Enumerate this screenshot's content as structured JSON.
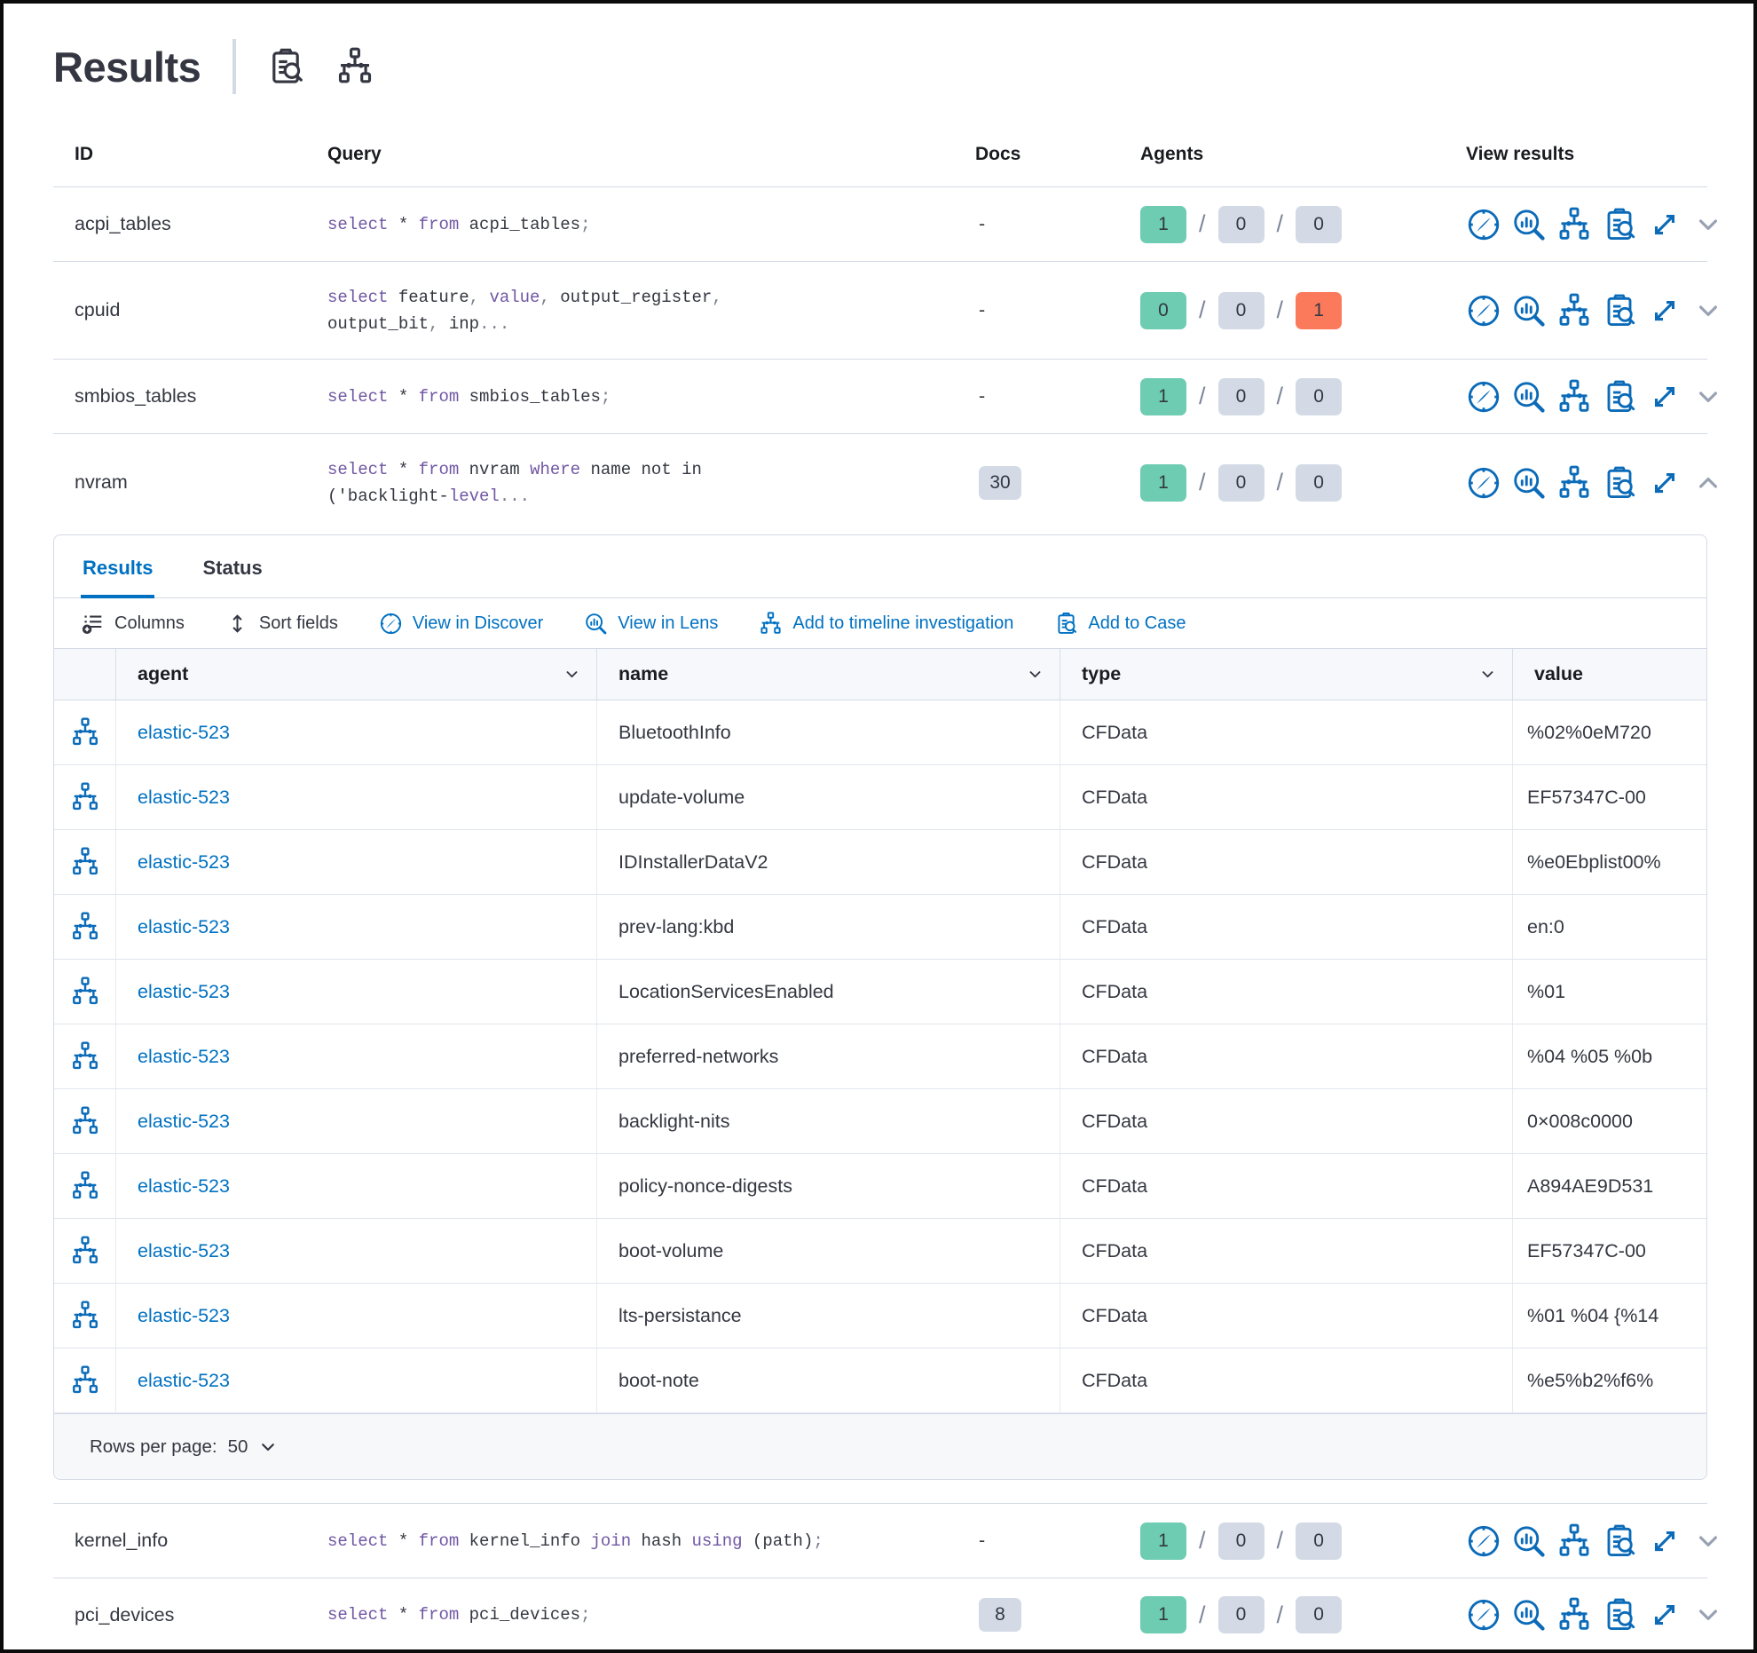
{
  "page": {
    "title": "Results"
  },
  "colors": {
    "accent_blue": "#0071c2",
    "success_badge": "#6dccb1",
    "default_badge": "#d3dae6",
    "danger_badge": "#fb7a5c",
    "sql_keyword": "#7057a3"
  },
  "header_icons": [
    {
      "icon": "inspect",
      "name": "inspect-query-icon"
    },
    {
      "icon": "timeline",
      "name": "timeline-icon"
    }
  ],
  "table": {
    "columns": [
      "ID",
      "Query",
      "Docs",
      "Agents",
      "View results"
    ],
    "row_action_icons": [
      {
        "icon": "discover",
        "name": "view-in-discover-button"
      },
      {
        "icon": "lens",
        "name": "view-in-lens-button"
      },
      {
        "icon": "timeline",
        "name": "add-to-timeline-button"
      },
      {
        "icon": "case",
        "name": "add-to-case-button"
      },
      {
        "icon": "expand",
        "name": "expand-results-button"
      }
    ],
    "rows": [
      {
        "id": "acpi_tables",
        "docs": "-",
        "docs_is_badge": false,
        "expanded": false,
        "agents": {
          "ok": "1",
          "pending": "0",
          "failed": "0"
        },
        "query_lines": [
          [
            {
              "t": "select",
              "c": "kw"
            },
            {
              "t": " * ",
              "c": "tx"
            },
            {
              "t": "from",
              "c": "kw"
            },
            {
              "t": " acpi_tables",
              "c": "tx"
            },
            {
              "t": ";",
              "c": "pu"
            }
          ]
        ]
      },
      {
        "id": "cpuid",
        "docs": "-",
        "docs_is_badge": false,
        "expanded": false,
        "agents": {
          "ok": "0",
          "pending": "0",
          "failed": "1"
        },
        "query_lines": [
          [
            {
              "t": "select",
              "c": "kw"
            },
            {
              "t": " feature",
              "c": "tx"
            },
            {
              "t": ", ",
              "c": "pu"
            },
            {
              "t": "value",
              "c": "kw"
            },
            {
              "t": ", ",
              "c": "pu"
            },
            {
              "t": "output_register",
              "c": "tx"
            },
            {
              "t": ",",
              "c": "pu"
            }
          ],
          [
            {
              "t": "output_bit",
              "c": "tx"
            },
            {
              "t": ", ",
              "c": "pu"
            },
            {
              "t": "inp",
              "c": "tx"
            },
            {
              "t": "...",
              "c": "pu"
            }
          ]
        ]
      },
      {
        "id": "smbios_tables",
        "docs": "-",
        "docs_is_badge": false,
        "expanded": false,
        "agents": {
          "ok": "1",
          "pending": "0",
          "failed": "0"
        },
        "query_lines": [
          [
            {
              "t": "select",
              "c": "kw"
            },
            {
              "t": " * ",
              "c": "tx"
            },
            {
              "t": "from",
              "c": "kw"
            },
            {
              "t": " smbios_tables",
              "c": "tx"
            },
            {
              "t": ";",
              "c": "pu"
            }
          ]
        ]
      },
      {
        "id": "nvram",
        "docs": "30",
        "docs_is_badge": true,
        "expanded": true,
        "agents": {
          "ok": "1",
          "pending": "0",
          "failed": "0"
        },
        "query_lines": [
          [
            {
              "t": "select",
              "c": "kw"
            },
            {
              "t": " * ",
              "c": "tx"
            },
            {
              "t": "from",
              "c": "kw"
            },
            {
              "t": " nvram ",
              "c": "tx"
            },
            {
              "t": "where",
              "c": "kw"
            },
            {
              "t": " name not in",
              "c": "tx"
            }
          ],
          [
            {
              "t": "('backlight-",
              "c": "tx"
            },
            {
              "t": "level",
              "c": "kw"
            },
            {
              "t": "...",
              "c": "pu"
            }
          ]
        ]
      },
      {
        "id": "kernel_info",
        "docs": "-",
        "docs_is_badge": false,
        "expanded": false,
        "agents": {
          "ok": "1",
          "pending": "0",
          "failed": "0"
        },
        "query_lines": [
          [
            {
              "t": "select",
              "c": "kw"
            },
            {
              "t": " * ",
              "c": "tx"
            },
            {
              "t": "from",
              "c": "kw"
            },
            {
              "t": " kernel_info ",
              "c": "tx"
            },
            {
              "t": "join",
              "c": "kw"
            },
            {
              "t": " hash ",
              "c": "tx"
            },
            {
              "t": "using",
              "c": "kw"
            },
            {
              "t": " (path)",
              "c": "tx"
            },
            {
              "t": ";",
              "c": "pu"
            }
          ]
        ]
      },
      {
        "id": "pci_devices",
        "docs": "8",
        "docs_is_badge": true,
        "expanded": false,
        "agents": {
          "ok": "1",
          "pending": "0",
          "failed": "0"
        },
        "query_lines": [
          [
            {
              "t": "select",
              "c": "kw"
            },
            {
              "t": " * ",
              "c": "tx"
            },
            {
              "t": "from",
              "c": "kw"
            },
            {
              "t": " pci_devices",
              "c": "tx"
            },
            {
              "t": ";",
              "c": "pu"
            }
          ]
        ]
      }
    ]
  },
  "panel": {
    "attached_to_row": "nvram",
    "tabs": [
      {
        "label": "Results",
        "active": true
      },
      {
        "label": "Status",
        "active": false
      }
    ],
    "toolbar": [
      {
        "label": "Columns",
        "icon": "columns",
        "variant": "dark",
        "name": "columns-button"
      },
      {
        "label": "Sort fields",
        "icon": "sort",
        "variant": "dark",
        "name": "sort-fields-button"
      },
      {
        "label": "View in Discover",
        "icon": "discover",
        "variant": "link",
        "name": "view-in-discover-link"
      },
      {
        "label": "View in Lens",
        "icon": "lens",
        "variant": "link",
        "name": "view-in-lens-link"
      },
      {
        "label": "Add to timeline investigation",
        "icon": "timeline",
        "variant": "link",
        "name": "add-to-timeline-link"
      },
      {
        "label": "Add to Case",
        "icon": "case",
        "variant": "link",
        "name": "add-to-case-link"
      }
    ],
    "grid": {
      "columns": [
        {
          "label": "",
          "sortable": false
        },
        {
          "label": "agent",
          "sortable": true
        },
        {
          "label": "name",
          "sortable": true
        },
        {
          "label": "type",
          "sortable": true
        },
        {
          "label": "value",
          "sortable": false
        }
      ],
      "rows": [
        {
          "agent": "elastic-523",
          "name": "BluetoothInfo",
          "type": "CFData",
          "value": "%02%0eM720"
        },
        {
          "agent": "elastic-523",
          "name": "update-volume",
          "type": "CFData",
          "value": "EF57347C-00"
        },
        {
          "agent": "elastic-523",
          "name": "IDInstallerDataV2",
          "type": "CFData",
          "value": "%e0Ebplist00%"
        },
        {
          "agent": "elastic-523",
          "name": "prev-lang:kbd",
          "type": "CFData",
          "value": "en:0"
        },
        {
          "agent": "elastic-523",
          "name": "LocationServicesEnabled",
          "type": "CFData",
          "value": "%01"
        },
        {
          "agent": "elastic-523",
          "name": "preferred-networks",
          "type": "CFData",
          "value": "%04 %05 %0b"
        },
        {
          "agent": "elastic-523",
          "name": "backlight-nits",
          "type": "CFData",
          "value": "0×008c0000"
        },
        {
          "agent": "elastic-523",
          "name": "policy-nonce-digests",
          "type": "CFData",
          "value": "A894AE9D531"
        },
        {
          "agent": "elastic-523",
          "name": "boot-volume",
          "type": "CFData",
          "value": "EF57347C-00"
        },
        {
          "agent": "elastic-523",
          "name": "lts-persistance",
          "type": "CFData",
          "value": "%01 %04 {%14"
        },
        {
          "agent": "elastic-523",
          "name": "boot-note",
          "type": "CFData",
          "value": "%e5%b2%f6%"
        }
      ],
      "footer": {
        "rows_per_page_label": "Rows per page:",
        "rows_per_page_value": "50"
      }
    }
  }
}
